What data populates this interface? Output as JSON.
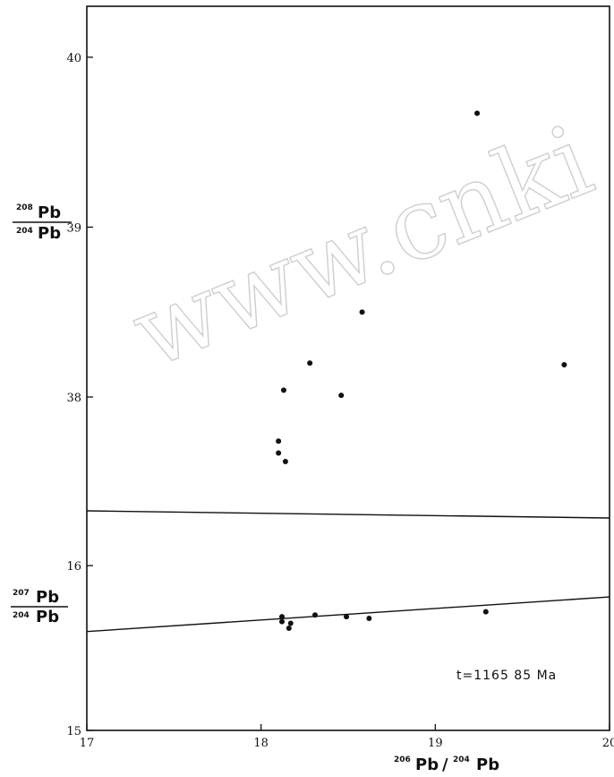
{
  "chart_data": [
    {
      "type": "scatter",
      "panel": "upper",
      "ylabel_num_sup": "208",
      "ylabel_num": "Pb",
      "ylabel_den_sup": "204",
      "ylabel_den": "Pb",
      "xlim": [
        17,
        20
      ],
      "ylim": [
        37.33,
        40.3
      ],
      "yticks": [
        38,
        39,
        40
      ],
      "points": [
        {
          "x": 19.24,
          "y": 39.67
        },
        {
          "x": 18.58,
          "y": 38.5
        },
        {
          "x": 18.28,
          "y": 38.2
        },
        {
          "x": 19.74,
          "y": 38.19
        },
        {
          "x": 18.13,
          "y": 38.04
        },
        {
          "x": 18.46,
          "y": 38.01
        },
        {
          "x": 18.1,
          "y": 37.74
        },
        {
          "x": 18.1,
          "y": 37.67
        },
        {
          "x": 18.14,
          "y": 37.62
        }
      ]
    },
    {
      "type": "scatter",
      "panel": "lower",
      "ylabel_num_sup": "207",
      "ylabel_num": "Pb",
      "ylabel_den_sup": "204",
      "ylabel_den": "Pb",
      "xlabel_num_sup": "206",
      "xlabel_num": "Pb",
      "xlabel_den_sup": "204",
      "xlabel_den": "Pb",
      "xlim": [
        17,
        20
      ],
      "xticks": [
        17,
        18,
        19,
        20
      ],
      "ylim": [
        15,
        16.3
      ],
      "yticks": [
        15,
        16
      ],
      "points": [
        {
          "x": 18.12,
          "y": 15.69
        },
        {
          "x": 18.12,
          "y": 15.66
        },
        {
          "x": 18.17,
          "y": 15.65
        },
        {
          "x": 18.16,
          "y": 15.62
        },
        {
          "x": 18.31,
          "y": 15.7
        },
        {
          "x": 18.49,
          "y": 15.69
        },
        {
          "x": 18.62,
          "y": 15.68
        },
        {
          "x": 19.29,
          "y": 15.72
        }
      ],
      "fit_line": {
        "x": [
          17,
          20
        ],
        "y": [
          15.6,
          15.81
        ]
      },
      "annotation": "t=1165 85 Ma"
    }
  ],
  "watermark": "www.cnki"
}
